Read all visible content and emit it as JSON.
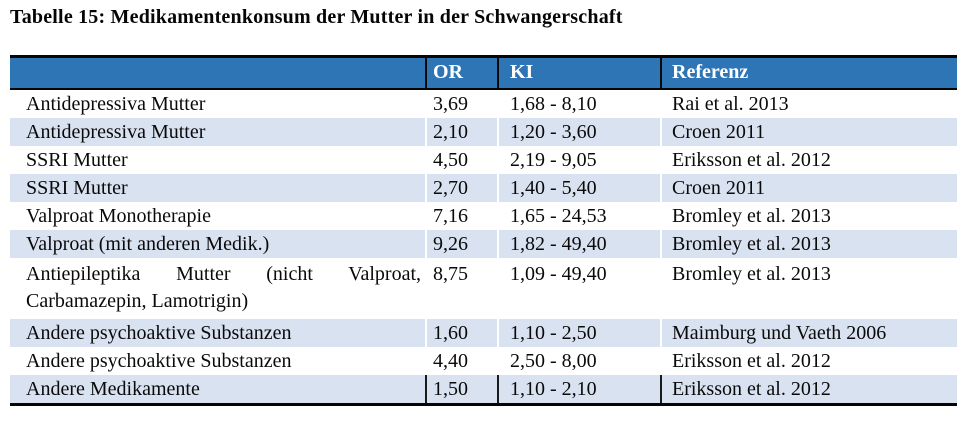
{
  "page": {
    "title": "Tabelle 15: Medikamentenkonsum der Mutter in der Schwangerschaft"
  },
  "colors": {
    "header_bg": "#2E75B6",
    "band_bg": "#D9E2F0",
    "border": "#050505",
    "header_text": "#FFFFFF",
    "body_text": "#0A0A0A"
  },
  "table": {
    "columns": [
      {
        "label": ""
      },
      {
        "label": "OR"
      },
      {
        "label": "KI"
      },
      {
        "label": "Referenz"
      }
    ],
    "rows": [
      {
        "substanz": "Antidepressiva Mutter",
        "or": "3,69",
        "ki": "1,68 - 8,10",
        "referenz": "Rai et al. 2013"
      },
      {
        "substanz": "Antidepressiva Mutter",
        "or": "2,10",
        "ki": "1,20 - 3,60",
        "referenz": "Croen 2011"
      },
      {
        "substanz": "SSRI Mutter",
        "or": "4,50",
        "ki": "2,19 - 9,05",
        "referenz": "Eriksson et al. 2012"
      },
      {
        "substanz": "SSRI Mutter",
        "or": "2,70",
        "ki": "1,40 - 5,40",
        "referenz": "Croen 2011"
      },
      {
        "substanz": "Valproat Monotherapie",
        "or": "7,16",
        "ki": "1,65 - 24,53",
        "referenz": "Bromley et al. 2013"
      },
      {
        "substanz": "Valproat (mit anderen Medik.)",
        "or": "9,26",
        "ki": "1,82 - 49,40",
        "referenz": "Bromley et al. 2013"
      },
      {
        "substanz": "Antiepileptika Mutter (nicht Valproat, Carbamazepin, Lamotrigin)",
        "or": "8,75",
        "ki": "1,09 - 49,40",
        "referenz": "Bromley et al. 2013"
      },
      {
        "substanz": "Andere psychoaktive Substanzen",
        "or": "1,60",
        "ki": "1,10 - 2,50",
        "referenz": "Maimburg und Vaeth 2006"
      },
      {
        "substanz": "Andere psychoaktive Substanzen",
        "or": "4,40",
        "ki": "2,50 - 8,00",
        "referenz": "Eriksson et al. 2012"
      },
      {
        "substanz": "Andere Medikamente",
        "or": "1,50",
        "ki": "1,10 - 2,10",
        "referenz": "Eriksson et al. 2012"
      }
    ]
  },
  "chart_data": {
    "type": "table",
    "title": "Tabelle 15: Medikamentenkonsum der Mutter in der Schwangerschaft",
    "columns": [
      "",
      "OR",
      "KI",
      "Referenz"
    ],
    "rows": [
      [
        "Antidepressiva Mutter",
        "3,69",
        "1,68 - 8,10",
        "Rai et al. 2013"
      ],
      [
        "Antidepressiva Mutter",
        "2,10",
        "1,20 - 3,60",
        "Croen 2011"
      ],
      [
        "SSRI Mutter",
        "4,50",
        "2,19 - 9,05",
        "Eriksson et al. 2012"
      ],
      [
        "SSRI Mutter",
        "2,70",
        "1,40 - 5,40",
        "Croen 2011"
      ],
      [
        "Valproat Monotherapie",
        "7,16",
        "1,65 - 24,53",
        "Bromley et al. 2013"
      ],
      [
        "Valproat (mit anderen Medik.)",
        "9,26",
        "1,82 - 49,40",
        "Bromley et al. 2013"
      ],
      [
        "Antiepileptika Mutter (nicht Valproat, Carbamazepin, Lamotrigin)",
        "8,75",
        "1,09 - 49,40",
        "Bromley et al. 2013"
      ],
      [
        "Andere psychoaktive Substanzen",
        "1,60",
        "1,10 - 2,50",
        "Maimburg und Vaeth 2006"
      ],
      [
        "Andere psychoaktive Substanzen",
        "4,40",
        "2,50 - 8,00",
        "Eriksson et al. 2012"
      ],
      [
        "Andere Medikamente",
        "1,50",
        "1,10 - 2,10",
        "Eriksson et al. 2012"
      ]
    ]
  }
}
